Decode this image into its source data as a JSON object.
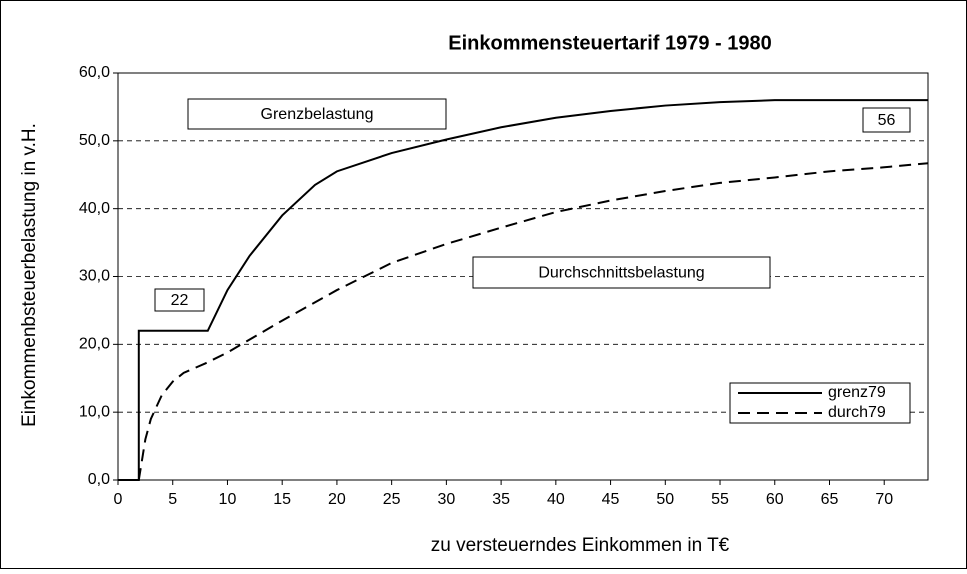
{
  "chart_data": {
    "type": "line",
    "title": "Einkommensteuertarif 1979 - 1980",
    "xlabel": "zu versteuerndes Einkommen in T€",
    "ylabel": "Einkommenbsteuerbelastung in v.H.",
    "xlim": [
      0,
      74
    ],
    "ylim": [
      0,
      60
    ],
    "xticks": [
      0,
      5,
      10,
      15,
      20,
      25,
      30,
      35,
      40,
      45,
      50,
      55,
      60,
      65,
      70
    ],
    "yticks": [
      {
        "value": 0,
        "label": "0,0"
      },
      {
        "value": 10,
        "label": "10,0"
      },
      {
        "value": 20,
        "label": "20,0"
      },
      {
        "value": 30,
        "label": "30,0"
      },
      {
        "value": 40,
        "label": "40,0"
      },
      {
        "value": 50,
        "label": "50,0"
      },
      {
        "value": 60,
        "label": "60,0"
      }
    ],
    "grid": true,
    "legend": "lower right",
    "annotations": [
      "Grenzbelastung",
      "Durchschnittsbelastung",
      "22",
      "56"
    ],
    "series": [
      {
        "name": "grenz79",
        "color": "#000000",
        "dash": "solid",
        "x": [
          0,
          1.9,
          1.9,
          8.2,
          10,
          12,
          15,
          18,
          20,
          25,
          30,
          35,
          40,
          45,
          50,
          55,
          60,
          74
        ],
        "values": [
          0,
          0,
          22,
          22,
          28,
          33,
          39,
          43.5,
          45.5,
          48.2,
          50.2,
          52,
          53.4,
          54.4,
          55.2,
          55.7,
          56,
          56
        ]
      },
      {
        "name": "durch79",
        "color": "#000000",
        "dash": "dashed",
        "x": [
          1.9,
          2.5,
          3,
          4,
          5,
          6,
          8,
          10,
          15,
          20,
          25,
          30,
          35,
          40,
          45,
          50,
          55,
          60,
          65,
          70,
          74
        ],
        "values": [
          0,
          6,
          9,
          12.5,
          14.5,
          15.8,
          17.2,
          18.8,
          23.5,
          28,
          32,
          34.8,
          37.2,
          39.5,
          41.2,
          42.6,
          43.8,
          44.6,
          45.5,
          46.1,
          46.7
        ]
      }
    ]
  }
}
